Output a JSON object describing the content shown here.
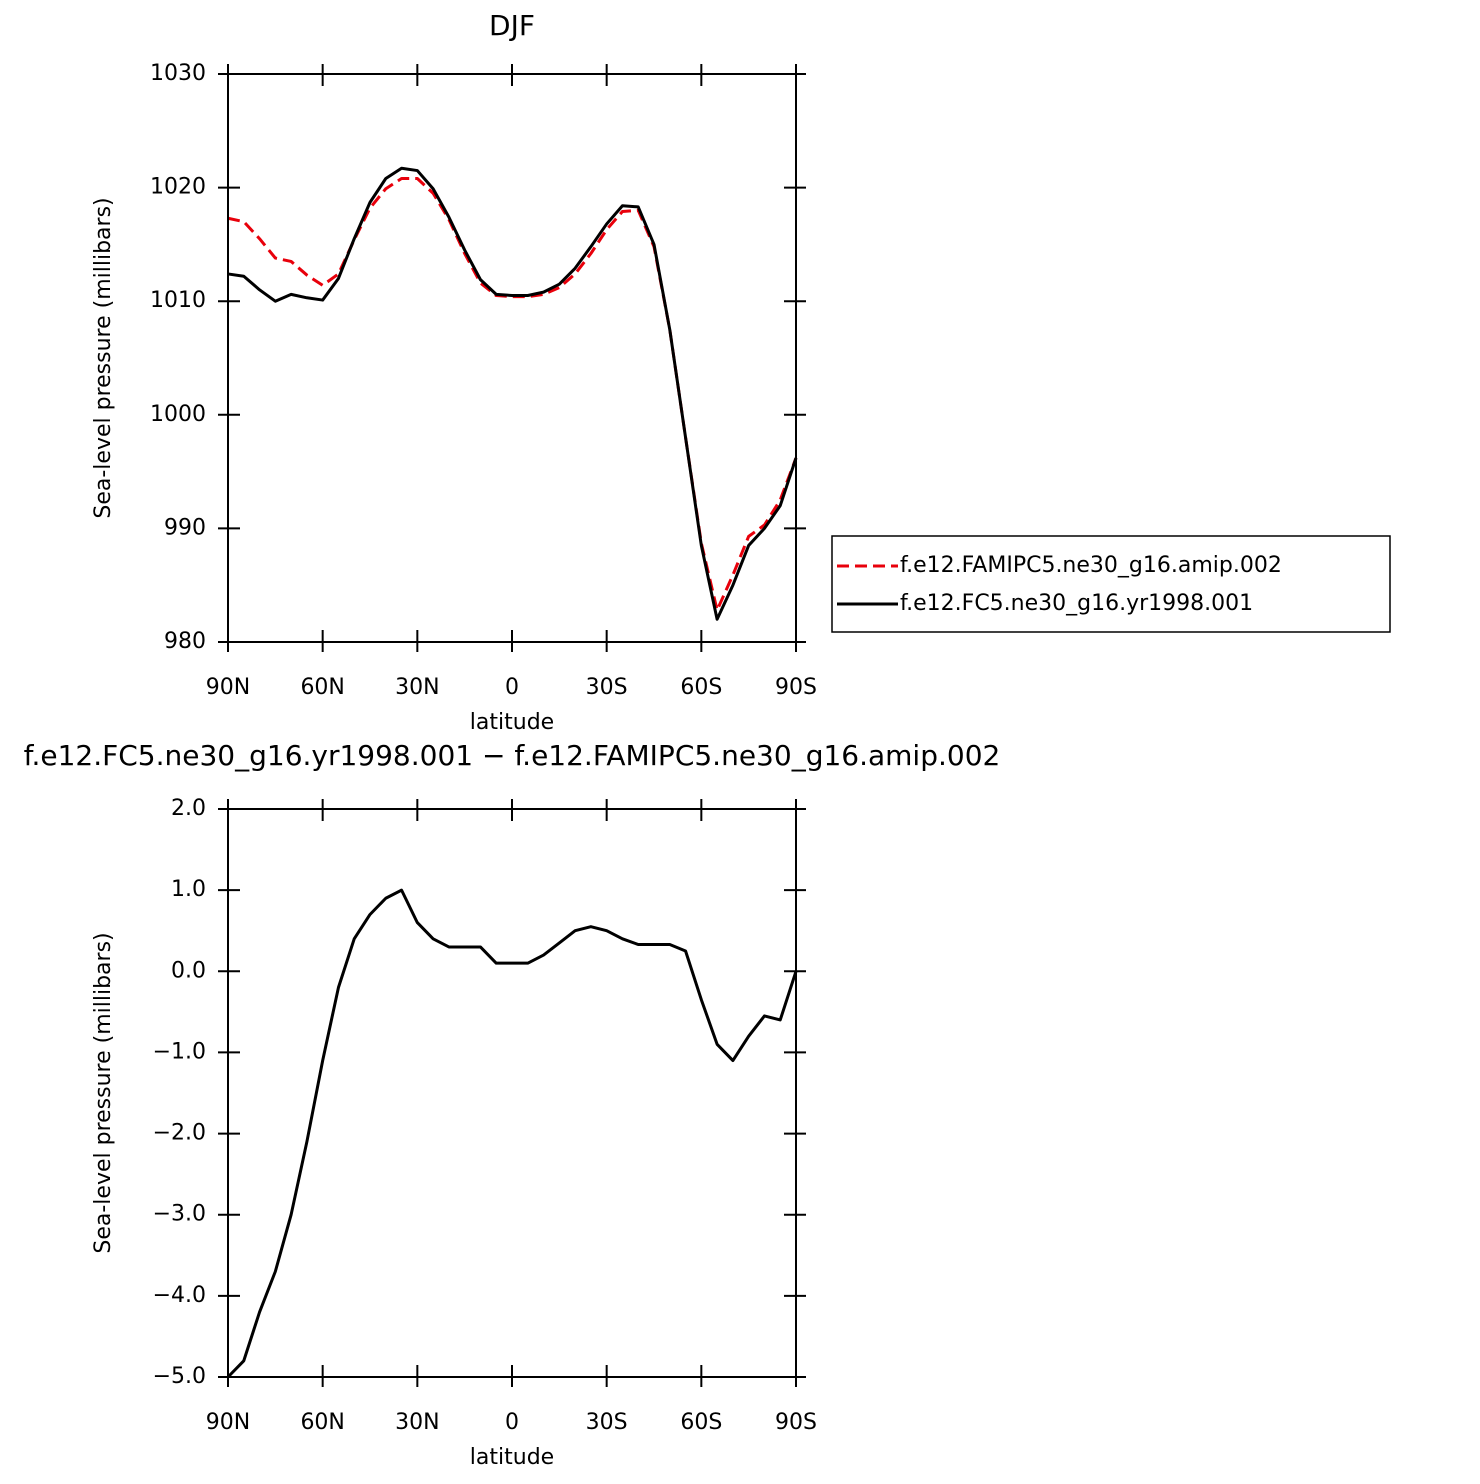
{
  "chart_data": [
    {
      "type": "line",
      "title": "DJF",
      "xlabel": "latitude",
      "ylabel": "Sea-level pressure (millibars)",
      "x": [
        90,
        85,
        80,
        75,
        70,
        65,
        60,
        55,
        50,
        45,
        40,
        35,
        30,
        25,
        20,
        15,
        10,
        5,
        0,
        -5,
        -10,
        -15,
        -20,
        -25,
        -30,
        -35,
        -40,
        -45,
        -50,
        -55,
        -60,
        -65,
        -70,
        -75,
        -80,
        -85,
        -90
      ],
      "xlim": [
        90,
        -90
      ],
      "xticks": [
        {
          "value": 90,
          "label": "90N"
        },
        {
          "value": 60,
          "label": "60N"
        },
        {
          "value": 30,
          "label": "30N"
        },
        0,
        {
          "value": -30,
          "label": "30S"
        },
        {
          "value": -60,
          "label": "60S"
        },
        {
          "value": -90,
          "label": "90S"
        }
      ],
      "ylim": [
        980,
        1030
      ],
      "yticks": [
        980,
        990,
        1000,
        1010,
        1020,
        1030
      ],
      "legend": "right",
      "series": [
        {
          "name": "f.e12.FAMIPC5.ne30_g16.amip.002",
          "color": "#e8000b",
          "dashed": true,
          "values": [
            1017.3,
            1017.0,
            1015.5,
            1013.8,
            1013.5,
            1012.3,
            1011.4,
            1012.4,
            1015.4,
            1018.2,
            1019.9,
            1020.8,
            1020.8,
            1019.5,
            1017.2,
            1014.2,
            1011.6,
            1010.5,
            1010.4,
            1010.4,
            1010.6,
            1011.2,
            1012.4,
            1014.2,
            1016.3,
            1017.9,
            1018.0,
            1014.8,
            1007.5,
            998.0,
            988.7,
            982.8,
            985.9,
            989.3,
            990.3,
            992.5,
            996.2
          ]
        },
        {
          "name": "f.e12.FC5.ne30_g16.yr1998.001",
          "color": "#000000",
          "dashed": false,
          "values": [
            1012.4,
            1012.2,
            1011.0,
            1010.0,
            1010.6,
            1010.3,
            1010.1,
            1012.0,
            1015.5,
            1018.7,
            1020.8,
            1021.7,
            1021.5,
            1019.9,
            1017.4,
            1014.5,
            1011.9,
            1010.6,
            1010.5,
            1010.5,
            1010.8,
            1011.5,
            1012.9,
            1014.8,
            1016.8,
            1018.4,
            1018.3,
            1015.0,
            1007.5,
            998.0,
            988.5,
            982.0,
            985.0,
            988.5,
            990.0,
            992.0,
            996.2
          ]
        }
      ]
    },
    {
      "type": "line",
      "title": "f.e12.FC5.ne30_g16.yr1998.001 − f.e12.FAMIPC5.ne30_g16.amip.002",
      "xlabel": "latitude",
      "ylabel": "Sea-level pressure (millibars)",
      "x": [
        90,
        85,
        80,
        75,
        70,
        65,
        60,
        55,
        50,
        45,
        40,
        35,
        30,
        25,
        20,
        15,
        10,
        5,
        0,
        -5,
        -10,
        -15,
        -20,
        -25,
        -30,
        -35,
        -40,
        -45,
        -50,
        -55,
        -60,
        -65,
        -70,
        -75,
        -80,
        -85,
        -90
      ],
      "xlim": [
        90,
        -90
      ],
      "xticks": [
        {
          "value": 90,
          "label": "90N"
        },
        {
          "value": 60,
          "label": "60N"
        },
        {
          "value": 30,
          "label": "30N"
        },
        0,
        {
          "value": -30,
          "label": "30S"
        },
        {
          "value": -60,
          "label": "60S"
        },
        {
          "value": -90,
          "label": "90S"
        }
      ],
      "ylim": [
        -5,
        2
      ],
      "yticks": [
        {
          "value": -5,
          "label": "−5.0"
        },
        {
          "value": -4,
          "label": "−4.0"
        },
        {
          "value": -3,
          "label": "−3.0"
        },
        {
          "value": -2,
          "label": "−2.0"
        },
        {
          "value": -1,
          "label": "−1.0"
        },
        {
          "value": 0,
          "label": "0.0"
        },
        {
          "value": 1,
          "label": "1.0"
        },
        {
          "value": 2,
          "label": "2.0"
        }
      ],
      "series": [
        {
          "color": "#000000",
          "dashed": false,
          "values": [
            -5.0,
            -4.8,
            -4.2,
            -3.7,
            -3.0,
            -2.1,
            -1.1,
            -0.2,
            0.4,
            0.7,
            0.9,
            1.0,
            0.6,
            0.4,
            0.3,
            0.3,
            0.3,
            0.1,
            0.1,
            0.1,
            0.2,
            0.35,
            0.5,
            0.55,
            0.5,
            0.4,
            0.33,
            0.33,
            0.33,
            0.25,
            -0.35,
            -0.9,
            -1.1,
            -0.8,
            -0.55,
            -0.6,
            0.0
          ]
        }
      ]
    }
  ]
}
